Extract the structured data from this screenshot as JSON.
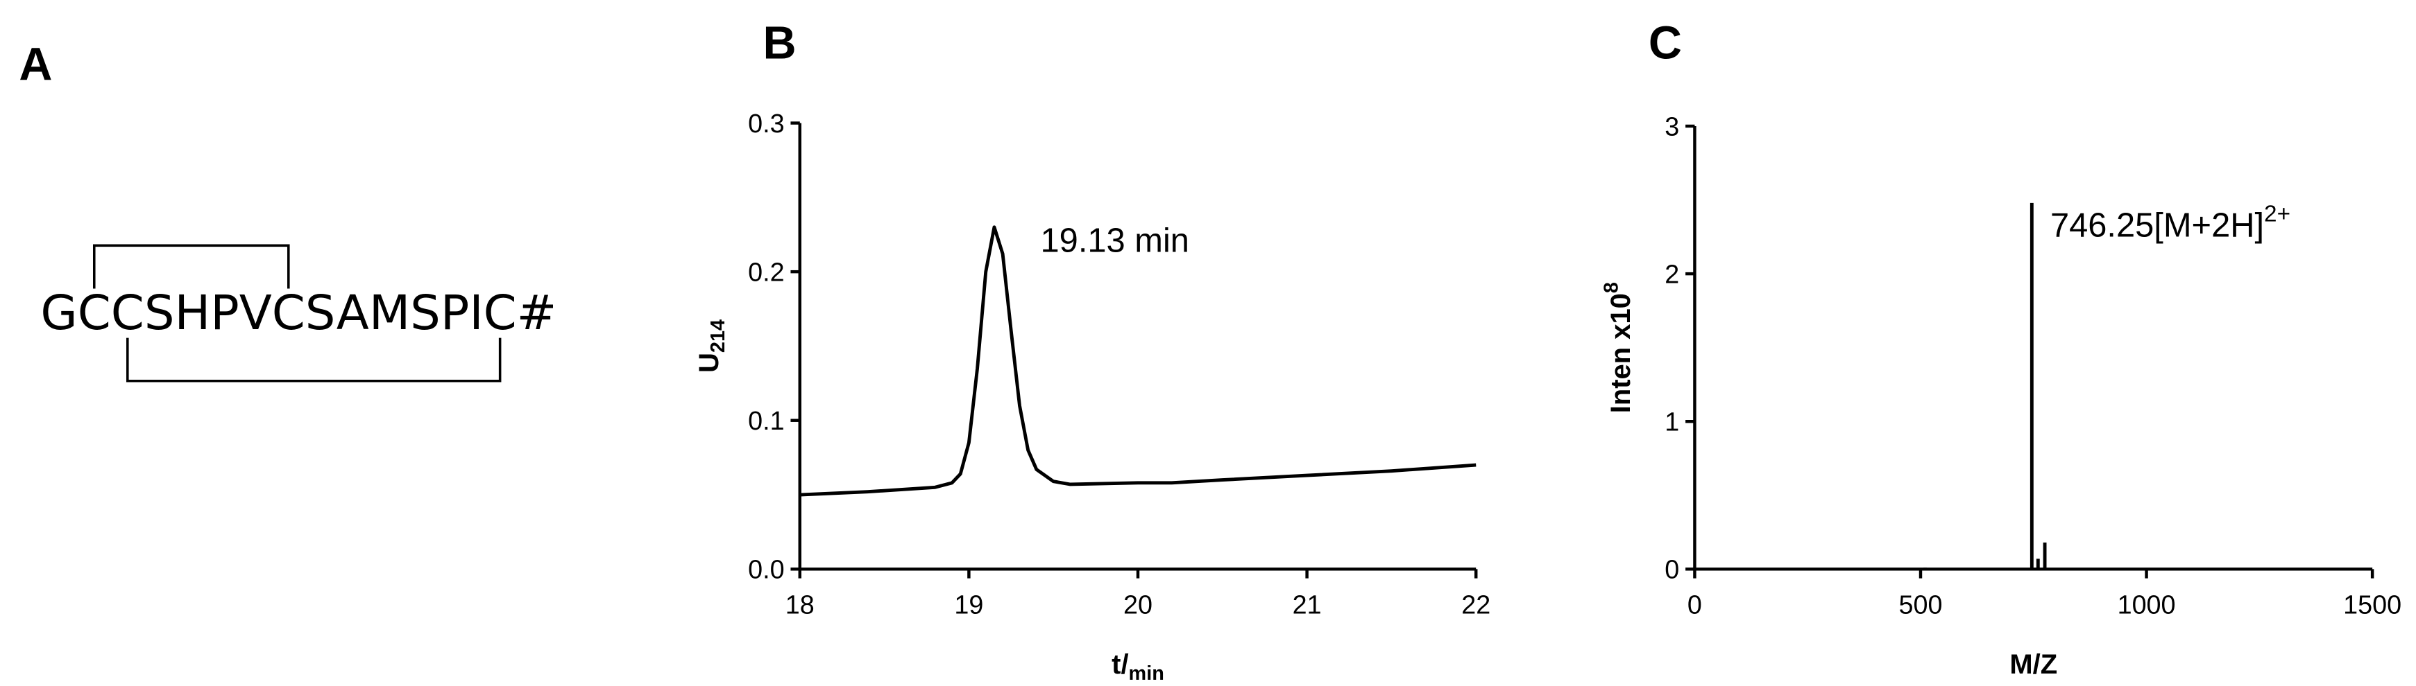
{
  "panel_a": {
    "label": "A",
    "sequence": "GCCSHPVCSAMSPIC#"
  },
  "chart_data": [
    {
      "type": "line",
      "label": "B",
      "xlabel": "t/",
      "xlabel_sub": "min",
      "ylabel": "U",
      "ylabel_sub": "214",
      "annotation": "19.13 min",
      "color": "#000000",
      "x": [
        18,
        18.4,
        18.8,
        18.9,
        18.95,
        19.0,
        19.05,
        19.1,
        19.15,
        19.2,
        19.25,
        19.3,
        19.35,
        19.4,
        19.5,
        19.6,
        20.0,
        20.2,
        20.5,
        21.0,
        21.5,
        22.0
      ],
      "values": [
        0.05,
        0.052,
        0.055,
        0.058,
        0.064,
        0.085,
        0.135,
        0.2,
        0.23,
        0.212,
        0.16,
        0.11,
        0.08,
        0.067,
        0.059,
        0.057,
        0.058,
        0.058,
        0.06,
        0.063,
        0.066,
        0.07
      ],
      "xlim": [
        18,
        22
      ],
      "xticks": [
        18,
        19,
        20,
        21,
        22
      ],
      "ylim": [
        0,
        0.3
      ],
      "yticks": [
        {
          "value": 0,
          "label": "0.0"
        },
        0.1,
        0.2,
        0.3
      ]
    },
    {
      "type": "bar",
      "label": "C",
      "xlabel": "M/Z",
      "ylabel": "Inten x10",
      "ylabel_sup": "8",
      "annotation": "746.25[M+2H]",
      "annotation_sup": "2+",
      "color": "#000000",
      "x": [
        510,
        746.25,
        760,
        775
      ],
      "values": [
        0.01,
        2.48,
        0.07,
        0.18
      ],
      "xlim": [
        0,
        1500
      ],
      "xticks": [
        0,
        500,
        1000,
        1500
      ],
      "ylim": [
        0,
        3
      ],
      "yticks": [
        0,
        1,
        2,
        3
      ]
    }
  ]
}
